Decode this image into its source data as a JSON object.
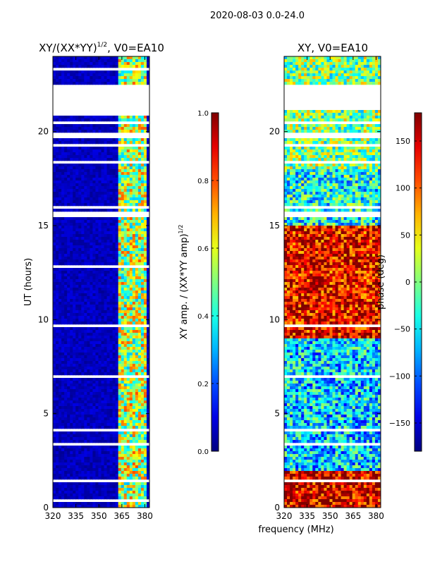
{
  "figure_title": "2020-08-03 0.0-24.0",
  "shared_xlabel": "frequency (MHz)",
  "chart_data": [
    {
      "type": "heatmap",
      "title_main": "XY/(XX*YY)",
      "title_sup": "1/2",
      "title_tail": ", V0=EA10",
      "xlabel": "",
      "ylabel": "UT (hours)",
      "xlim": [
        320,
        383
      ],
      "ylim": [
        0,
        24
      ],
      "xticks": [
        320,
        335,
        350,
        365,
        380
      ],
      "yticks": [
        0,
        5,
        10,
        15,
        20
      ],
      "colorbar": {
        "label_main": "XY amp. / (XX*YY amp)",
        "label_sup": "1/2",
        "range": [
          0.0,
          1.0
        ],
        "ticks": [
          "0.0",
          "0.2",
          "0.4",
          "0.6",
          "0.8",
          "1.0"
        ],
        "colormap": "jet"
      },
      "blank_time_bands": [
        [
          0.3,
          0.45
        ],
        [
          1.35,
          1.45
        ],
        [
          2.8,
          2.9
        ],
        [
          3.35,
          3.45
        ],
        [
          4.05,
          4.15
        ],
        [
          6.55,
          6.65
        ],
        [
          6.95,
          7.05
        ],
        [
          8.2,
          8.3
        ],
        [
          9.6,
          9.7
        ],
        [
          10.6,
          10.7
        ],
        [
          12.8,
          12.9
        ],
        [
          15.5,
          15.7
        ],
        [
          15.9,
          16.05
        ],
        [
          18.3,
          18.5
        ],
        [
          19.2,
          19.4
        ],
        [
          19.6,
          20.0
        ],
        [
          20.4,
          20.6
        ],
        [
          20.9,
          21.1
        ],
        [
          21.2,
          22.0
        ],
        [
          22.1,
          22.5
        ],
        [
          23.3,
          23.4
        ]
      ],
      "bright_channel_band_mhz": [
        362,
        381
      ]
    },
    {
      "type": "heatmap",
      "title_main": "XY, V0=EA10",
      "title_sup": "",
      "title_tail": "",
      "xlabel": "",
      "ylabel": "",
      "xlim": [
        320,
        383
      ],
      "ylim": [
        0,
        24
      ],
      "xticks": [
        320,
        335,
        350,
        365,
        380
      ],
      "yticks": [
        0,
        5,
        10,
        15,
        20
      ],
      "colorbar": {
        "label_main": "phase (deg)",
        "label_sup": "",
        "range": [
          -180,
          180
        ],
        "ticks": [
          "−150",
          "−100",
          "−50",
          "0",
          "50",
          "100",
          "150"
        ],
        "tick_values": [
          -150,
          -100,
          -50,
          0,
          50,
          100,
          150
        ],
        "colormap": "jet"
      },
      "blank_time_bands": [
        [
          1.35,
          1.45
        ],
        [
          2.8,
          2.9
        ],
        [
          3.35,
          3.45
        ],
        [
          4.05,
          4.15
        ],
        [
          6.95,
          7.05
        ],
        [
          8.2,
          8.3
        ],
        [
          9.6,
          9.7
        ],
        [
          15.5,
          15.7
        ],
        [
          15.9,
          16.05
        ],
        [
          18.3,
          18.5
        ],
        [
          19.2,
          19.4
        ],
        [
          19.6,
          20.0
        ],
        [
          20.4,
          20.6
        ],
        [
          21.2,
          22.0
        ],
        [
          22.1,
          22.5
        ]
      ],
      "phase_regions_deg": [
        {
          "ut": [
            0,
            2
          ],
          "value": 150
        },
        {
          "ut": [
            2,
            9
          ],
          "value": -60
        },
        {
          "ut": [
            9,
            15
          ],
          "value": 140
        },
        {
          "ut": [
            15,
            18
          ],
          "value": -40
        },
        {
          "ut": [
            18,
            24
          ],
          "value": 0
        }
      ]
    }
  ]
}
